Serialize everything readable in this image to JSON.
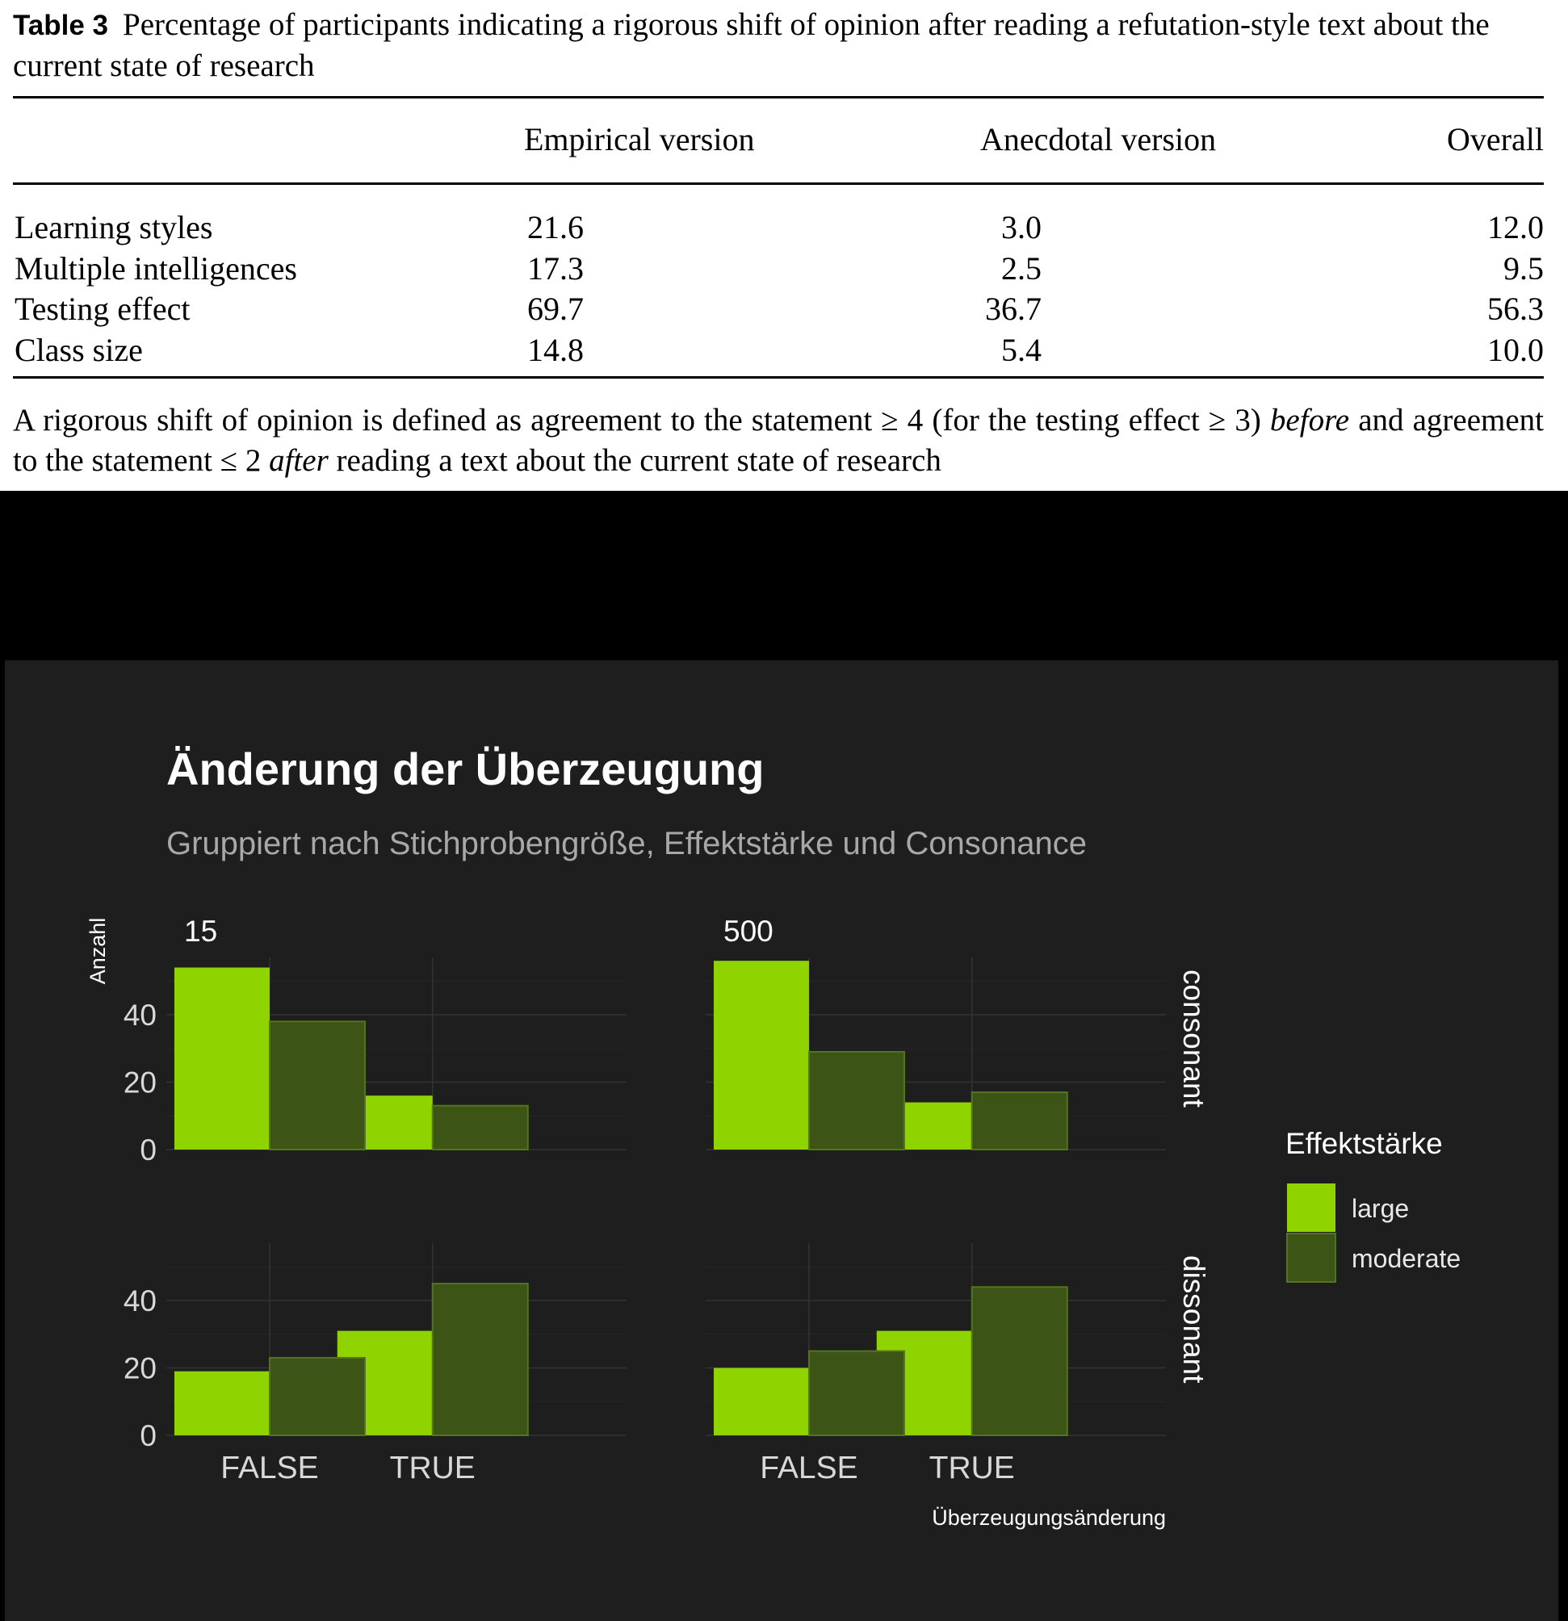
{
  "table": {
    "label": "Table 3",
    "caption": "Percentage of participants indicating a rigorous shift of opinion after reading a refutation-style text about the current state of research",
    "columns": [
      "",
      "Empirical version",
      "Anecdotal version",
      "Overall"
    ],
    "rows": [
      [
        "Learning styles",
        "21.6",
        "3.0",
        "12.0"
      ],
      [
        "Multiple intelligences",
        "17.3",
        "2.5",
        "9.5"
      ],
      [
        "Testing effect",
        "69.7",
        "36.7",
        "56.3"
      ],
      [
        "Class size",
        "14.8",
        "5.4",
        "10.0"
      ]
    ],
    "note": {
      "part1": "A rigorous shift of opinion is defined as agreement to the statement ≥ 4 (for the testing effect ≥ 3) ",
      "em1": "before",
      "part2": " and agreement to the statement ≤ 2 ",
      "em2": "after",
      "part3": " reading a text about the current state of research"
    }
  },
  "chart_data": {
    "type": "bar",
    "title": "Änderung der Überzeugung",
    "subtitle": "Gruppiert nach Stichprobengröße, Effektstärke und Consonance",
    "xlabel": "Überzeugungsänderung",
    "ylabel": "Anzahl",
    "categories": [
      "FALSE",
      "TRUE"
    ],
    "ylim": [
      0,
      57
    ],
    "yticks": [
      0,
      20,
      40
    ],
    "grid": true,
    "legend": {
      "title": "Effektstärke",
      "position": "right"
    },
    "series_colors": {
      "large": "#8fd400",
      "moderate": "#3c5517"
    },
    "moderate_border": "#56741c",
    "col_facets": [
      "15",
      "500"
    ],
    "row_facets": [
      "consonant",
      "dissonant"
    ],
    "panels": [
      {
        "col": "15",
        "row": "consonant",
        "series": [
          {
            "name": "large",
            "values": [
              54,
              16
            ]
          },
          {
            "name": "moderate",
            "values": [
              38,
              13
            ]
          }
        ]
      },
      {
        "col": "500",
        "row": "consonant",
        "series": [
          {
            "name": "large",
            "values": [
              56,
              14
            ]
          },
          {
            "name": "moderate",
            "values": [
              29,
              17
            ]
          }
        ]
      },
      {
        "col": "15",
        "row": "dissonant",
        "series": [
          {
            "name": "large",
            "values": [
              19,
              31
            ]
          },
          {
            "name": "moderate",
            "values": [
              23,
              45
            ]
          }
        ]
      },
      {
        "col": "500",
        "row": "dissonant",
        "series": [
          {
            "name": "large",
            "values": [
              20,
              31
            ]
          },
          {
            "name": "moderate",
            "values": [
              25,
              44
            ]
          }
        ]
      }
    ]
  }
}
